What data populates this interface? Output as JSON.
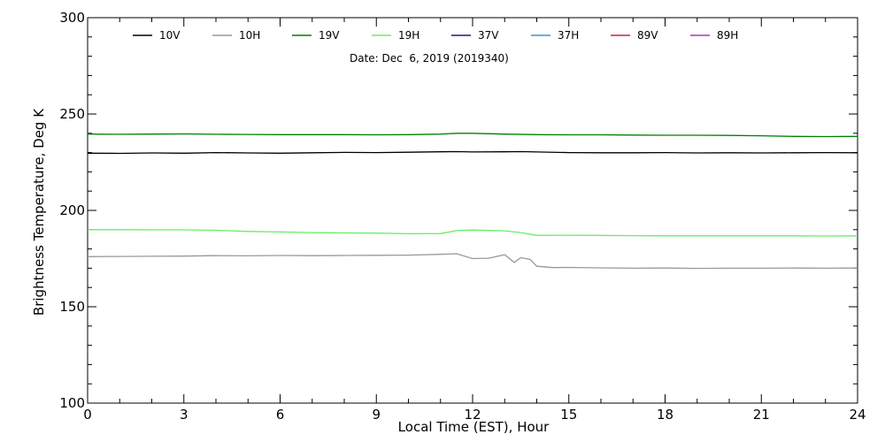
{
  "chart_data": {
    "type": "line",
    "annotation": "Date: Dec  6, 2019 (2019340)",
    "xlabel": "Local Time (EST), Hour",
    "ylabel": "Brightness Temperature, Deg K",
    "xlim": [
      0,
      24
    ],
    "ylim": [
      100,
      300
    ],
    "xticks": [
      0,
      3,
      6,
      9,
      12,
      15,
      18,
      21,
      24
    ],
    "xtick_labels": [
      "0",
      "3",
      "6",
      "9",
      "12",
      "15",
      "18",
      "21",
      "24"
    ],
    "yticks": [
      100,
      150,
      200,
      250,
      300
    ],
    "ytick_labels": [
      "100",
      "150",
      "200",
      "250",
      "300"
    ],
    "grid": false,
    "legend_position": "top",
    "series": [
      {
        "name": "10V",
        "color": "#000000",
        "x": [
          0,
          1,
          2,
          3,
          4,
          5,
          6,
          7,
          8,
          9,
          10,
          11,
          11.5,
          12,
          13,
          13.5,
          14,
          15,
          16,
          17,
          18,
          19,
          20,
          21,
          22,
          23,
          24
        ],
        "y": [
          229.7,
          229.6,
          229.8,
          229.7,
          230.0,
          229.8,
          229.7,
          229.9,
          230.1,
          230.0,
          230.2,
          230.4,
          230.5,
          230.3,
          230.4,
          230.5,
          230.3,
          230.0,
          229.9,
          229.9,
          230.0,
          229.8,
          229.9,
          229.8,
          229.9,
          230.0,
          229.9
        ]
      },
      {
        "name": "10H",
        "color": "#999999",
        "x": [
          0,
          1,
          2,
          3,
          4,
          5,
          6,
          7,
          8,
          9,
          10,
          11,
          11.5,
          12,
          12.5,
          13,
          13.3,
          13.5,
          13.8,
          14,
          14.5,
          15,
          16,
          17,
          18,
          19,
          20,
          21,
          22,
          23,
          24
        ],
        "y": [
          176.0,
          176.1,
          176.2,
          176.3,
          176.5,
          176.4,
          176.6,
          176.5,
          176.6,
          176.7,
          176.8,
          177.2,
          177.5,
          175.0,
          175.2,
          177.0,
          173.0,
          175.5,
          174.5,
          171.0,
          170.3,
          170.4,
          170.2,
          170.0,
          170.1,
          169.9,
          170.0,
          170.0,
          170.1,
          170.0,
          170.1
        ]
      },
      {
        "name": "19V",
        "color": "#008000",
        "x": [
          0,
          1,
          2,
          3,
          4,
          5,
          6,
          7,
          8,
          9,
          10,
          11,
          11.5,
          12,
          13,
          14,
          15,
          16,
          17,
          18,
          19,
          20,
          21,
          22,
          23,
          24
        ],
        "y": [
          239.6,
          239.5,
          239.6,
          239.7,
          239.5,
          239.4,
          239.3,
          239.3,
          239.3,
          239.2,
          239.3,
          239.6,
          240.0,
          240.0,
          239.6,
          239.3,
          239.2,
          239.2,
          239.1,
          239.0,
          239.0,
          238.9,
          238.7,
          238.4,
          238.3,
          238.4
        ]
      },
      {
        "name": "19H",
        "color": "#66ee66",
        "x": [
          0,
          1,
          2,
          3,
          4,
          5,
          6,
          7,
          8,
          9,
          10,
          11,
          11.5,
          12,
          12.5,
          13,
          13.5,
          14,
          15,
          16,
          17,
          18,
          19,
          20,
          21,
          22,
          23,
          24
        ],
        "y": [
          190.0,
          190.0,
          189.9,
          189.9,
          189.7,
          189.1,
          188.8,
          188.5,
          188.3,
          188.2,
          187.9,
          188.0,
          189.5,
          189.8,
          189.6,
          189.4,
          188.5,
          187.0,
          187.1,
          187.0,
          186.9,
          186.8,
          186.8,
          186.8,
          186.8,
          186.8,
          186.7,
          186.8
        ]
      },
      {
        "name": "37V",
        "color": "#1a1a8c",
        "x": [],
        "y": []
      },
      {
        "name": "37H",
        "color": "#3399cc",
        "x": [],
        "y": []
      },
      {
        "name": "89V",
        "color": "#cc2244",
        "x": [],
        "y": []
      },
      {
        "name": "89H",
        "color": "#aa33cc",
        "x": [],
        "y": []
      }
    ]
  }
}
